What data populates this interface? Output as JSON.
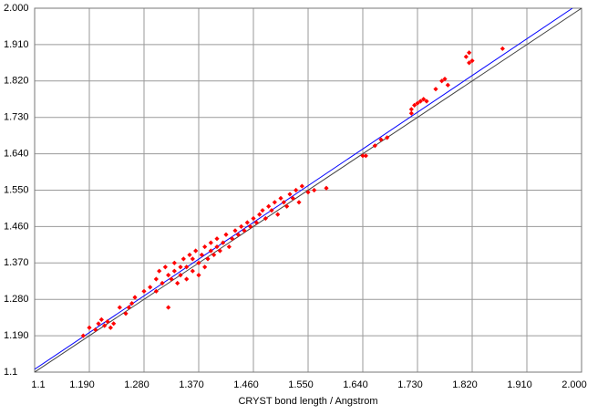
{
  "chart_data": {
    "type": "scatter",
    "x_label": "CRYST bond length / Angstrom",
    "xlim": [
      1.1,
      2.0
    ],
    "ylim": [
      1.1,
      2.0
    ],
    "grid": true,
    "xticks": [
      1.1,
      {
        "value": 1.19,
        "label": "1.190"
      },
      {
        "value": 1.28,
        "label": "1.280"
      },
      {
        "value": 1.37,
        "label": "1.370"
      },
      {
        "value": 1.46,
        "label": "1.460"
      },
      {
        "value": 1.55,
        "label": "1.550"
      },
      {
        "value": 1.64,
        "label": "1.640"
      },
      {
        "value": 1.73,
        "label": "1.730"
      },
      {
        "value": 1.82,
        "label": "1.820"
      },
      {
        "value": 1.91,
        "label": "1.910"
      },
      {
        "value": 2.0,
        "label": "2.000"
      }
    ],
    "yticks": [
      1.1,
      {
        "value": 1.19,
        "label": "1.190"
      },
      {
        "value": 1.28,
        "label": "1.280"
      },
      {
        "value": 1.37,
        "label": "1.370"
      },
      {
        "value": 1.46,
        "label": "1.460"
      },
      {
        "value": 1.55,
        "label": "1.550"
      },
      {
        "value": 1.64,
        "label": "1.640"
      },
      {
        "value": 1.73,
        "label": "1.730"
      },
      {
        "value": 1.82,
        "label": "1.820"
      },
      {
        "value": 1.91,
        "label": "1.910"
      },
      {
        "value": 2.0,
        "label": "2.000"
      }
    ],
    "reference_lines": [
      {
        "color": "#404040",
        "x": [
          1.1,
          2.0
        ],
        "y": [
          1.1,
          2.0
        ]
      },
      {
        "color": "#0000ff",
        "x": [
          1.1,
          1.985
        ],
        "y": [
          1.107,
          2.0
        ]
      }
    ],
    "series": [
      {
        "color": "#ff0000",
        "x": [
          1.18,
          1.19,
          1.2,
          1.205,
          1.21,
          1.215,
          1.22,
          1.225,
          1.23,
          1.24,
          1.25,
          1.255,
          1.26,
          1.265,
          1.28,
          1.29,
          1.3,
          1.3,
          1.305,
          1.31,
          1.315,
          1.32,
          1.32,
          1.325,
          1.33,
          1.33,
          1.335,
          1.34,
          1.34,
          1.345,
          1.35,
          1.35,
          1.355,
          1.36,
          1.36,
          1.365,
          1.37,
          1.37,
          1.375,
          1.38,
          1.38,
          1.385,
          1.39,
          1.39,
          1.395,
          1.4,
          1.4,
          1.405,
          1.41,
          1.415,
          1.42,
          1.425,
          1.43,
          1.435,
          1.44,
          1.445,
          1.45,
          1.455,
          1.46,
          1.465,
          1.47,
          1.475,
          1.48,
          1.485,
          1.49,
          1.495,
          1.5,
          1.505,
          1.51,
          1.515,
          1.52,
          1.525,
          1.53,
          1.535,
          1.54,
          1.55,
          1.56,
          1.58,
          1.64,
          1.645,
          1.66,
          1.67,
          1.68,
          1.72,
          1.72,
          1.725,
          1.73,
          1.735,
          1.74,
          1.745,
          1.76,
          1.77,
          1.775,
          1.78,
          1.81,
          1.815,
          1.815,
          1.82,
          1.87
        ],
        "y": [
          1.19,
          1.21,
          1.205,
          1.22,
          1.23,
          1.215,
          1.225,
          1.21,
          1.22,
          1.26,
          1.245,
          1.26,
          1.27,
          1.285,
          1.3,
          1.31,
          1.33,
          1.3,
          1.35,
          1.32,
          1.36,
          1.34,
          1.26,
          1.33,
          1.35,
          1.37,
          1.32,
          1.36,
          1.34,
          1.38,
          1.36,
          1.33,
          1.39,
          1.35,
          1.38,
          1.4,
          1.37,
          1.34,
          1.39,
          1.41,
          1.36,
          1.38,
          1.4,
          1.42,
          1.39,
          1.41,
          1.43,
          1.4,
          1.42,
          1.44,
          1.41,
          1.43,
          1.45,
          1.44,
          1.46,
          1.45,
          1.47,
          1.46,
          1.48,
          1.47,
          1.49,
          1.5,
          1.48,
          1.51,
          1.5,
          1.52,
          1.49,
          1.53,
          1.52,
          1.51,
          1.54,
          1.53,
          1.55,
          1.52,
          1.56,
          1.545,
          1.55,
          1.555,
          1.635,
          1.635,
          1.66,
          1.675,
          1.68,
          1.74,
          1.75,
          1.76,
          1.765,
          1.77,
          1.775,
          1.77,
          1.8,
          1.82,
          1.825,
          1.81,
          1.88,
          1.89,
          1.865,
          1.87,
          1.9
        ]
      }
    ]
  }
}
